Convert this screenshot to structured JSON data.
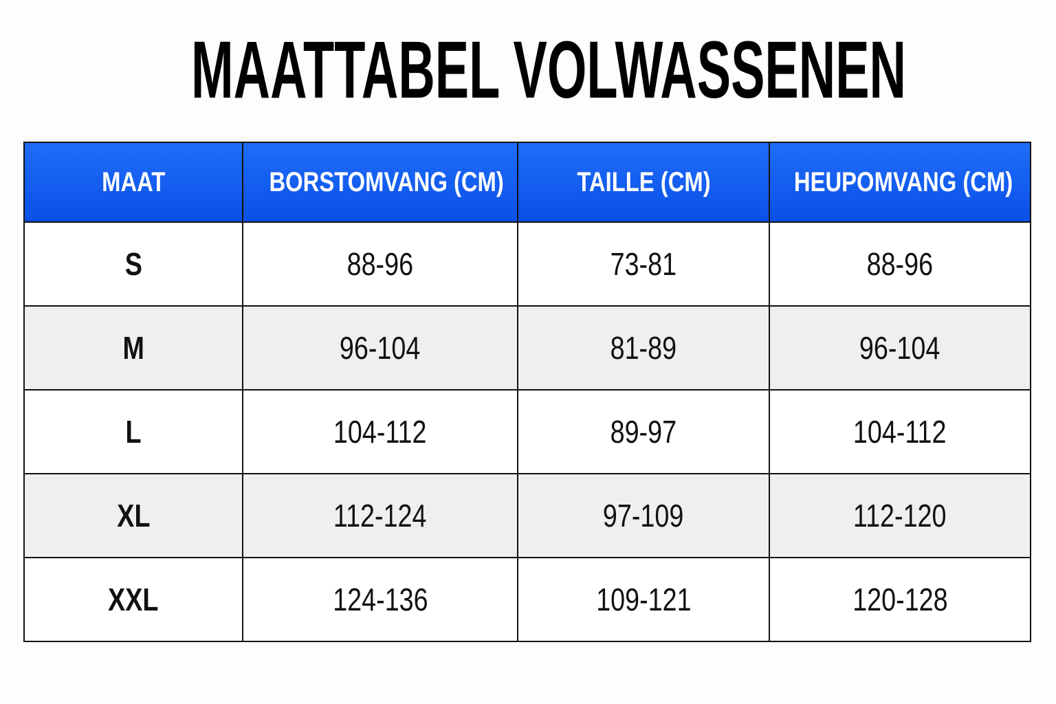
{
  "title": "MAATTABEL VOLWASSENEN",
  "table": {
    "headers": [
      "MAAT",
      "BORSTOMVANG (CM)",
      "TAILLE (CM)",
      "HEUPOMVANG (CM)"
    ],
    "rows": [
      [
        "S",
        "88-96",
        "73-81",
        "88-96"
      ],
      [
        "M",
        "96-104",
        "81-89",
        "96-104"
      ],
      [
        "L",
        "104-112",
        "89-97",
        "104-112"
      ],
      [
        "XL",
        "112-124",
        "97-109",
        "112-120"
      ],
      [
        "XXL",
        "124-136",
        "109-121",
        "120-128"
      ]
    ]
  }
}
